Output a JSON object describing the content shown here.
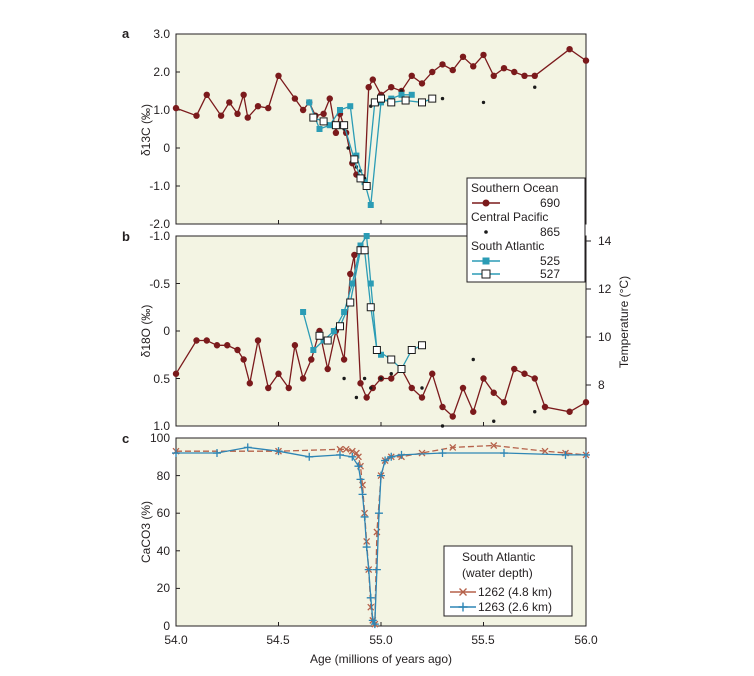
{
  "colors": {
    "panel_bg": "#f3f4e3",
    "red": "#7b1a1c",
    "teal": "#2b9cb5",
    "black": "#1a1a1a",
    "orange": "#b5614a",
    "blue": "#2e86b5"
  },
  "chart_data": [
    {
      "type": "line",
      "panel_label": "a",
      "ylabel": "δ13C (‰)",
      "ylim": [
        -2.0,
        3.0
      ],
      "xlim": [
        54.0,
        56.0
      ],
      "yticks": [
        "3.0",
        "2.0",
        "1.0",
        "0",
        "-1.0",
        "-2.0"
      ],
      "series": [
        {
          "name": "690",
          "group": "Southern Ocean",
          "marker": "circle",
          "x": [
            54.0,
            54.1,
            54.15,
            54.22,
            54.26,
            54.3,
            54.33,
            54.35,
            54.4,
            54.45,
            54.5,
            54.58,
            54.62,
            54.65,
            54.68,
            54.72,
            54.75,
            54.78,
            54.8,
            54.83,
            54.86,
            54.88,
            54.9,
            54.92,
            54.94,
            54.96,
            55.0,
            55.05,
            55.1,
            55.15,
            55.2,
            55.25,
            55.3,
            55.35,
            55.4,
            55.45,
            55.5,
            55.55,
            55.6,
            55.65,
            55.7,
            55.75,
            55.92,
            56.0
          ],
          "y": [
            1.05,
            0.85,
            1.4,
            0.85,
            1.2,
            0.9,
            1.4,
            0.8,
            1.1,
            1.05,
            1.9,
            1.3,
            1.0,
            1.2,
            0.85,
            0.9,
            1.3,
            0.4,
            0.9,
            0.4,
            -0.4,
            -0.7,
            -0.8,
            -0.9,
            1.6,
            1.8,
            1.4,
            1.6,
            1.5,
            1.9,
            1.7,
            2.0,
            2.2,
            2.05,
            2.4,
            2.15,
            2.45,
            1.9,
            2.1,
            2.0,
            1.9,
            1.9,
            2.6,
            2.3
          ]
        },
        {
          "name": "865",
          "group": "Central Pacific",
          "marker": "dot",
          "x": [
            54.82,
            54.84,
            54.86,
            54.88,
            54.9,
            54.92,
            54.95,
            55.0,
            55.1,
            55.3,
            55.5,
            55.75
          ],
          "y": [
            0.5,
            0.0,
            -0.3,
            -0.5,
            -0.6,
            -0.8,
            1.1,
            1.3,
            1.5,
            1.3,
            1.2,
            1.6
          ]
        },
        {
          "name": "525",
          "group": "South Atlantic",
          "marker": "square",
          "x": [
            54.65,
            54.7,
            54.75,
            54.8,
            54.85,
            54.88,
            54.92,
            54.95,
            55.0,
            55.05,
            55.1,
            55.15
          ],
          "y": [
            1.2,
            0.5,
            0.6,
            1.0,
            1.1,
            -0.2,
            -0.9,
            -1.5,
            1.2,
            1.3,
            1.4,
            1.4
          ]
        },
        {
          "name": "527",
          "group": "South Atlantic",
          "marker": "open-square",
          "x": [
            54.67,
            54.72,
            54.78,
            54.82,
            54.87,
            54.9,
            54.93,
            54.97,
            55.0,
            55.05,
            55.12,
            55.2,
            55.25
          ],
          "y": [
            0.8,
            0.7,
            0.6,
            0.6,
            -0.3,
            -0.8,
            -1.0,
            1.2,
            1.3,
            1.2,
            1.25,
            1.2,
            1.3
          ]
        }
      ]
    },
    {
      "type": "line",
      "panel_label": "b",
      "ylabel": "δ18O (‰)",
      "y2label": "Temperature (°C)",
      "ylim": [
        -1.0,
        1.0
      ],
      "y_inverted": true,
      "xlim": [
        54.0,
        56.0
      ],
      "yticks": [
        "-1.0",
        "-0.5",
        "0",
        "0.5",
        "1.0"
      ],
      "y2ticks": [
        "14",
        "12",
        "10",
        "8"
      ],
      "series": [
        {
          "name": "690",
          "marker": "circle",
          "x": [
            54.0,
            54.1,
            54.15,
            54.2,
            54.25,
            54.3,
            54.33,
            54.36,
            54.4,
            54.45,
            54.5,
            54.55,
            54.58,
            54.62,
            54.66,
            54.7,
            54.74,
            54.78,
            54.82,
            54.85,
            54.87,
            54.9,
            54.93,
            54.96,
            55.0,
            55.05,
            55.1,
            55.15,
            55.2,
            55.25,
            55.3,
            55.35,
            55.4,
            55.45,
            55.5,
            55.55,
            55.6,
            55.65,
            55.7,
            55.75,
            55.8,
            55.92,
            56.0
          ],
          "y": [
            0.45,
            0.1,
            0.1,
            0.15,
            0.15,
            0.2,
            0.3,
            0.55,
            0.1,
            0.6,
            0.45,
            0.6,
            0.15,
            0.5,
            0.3,
            0.0,
            0.4,
            0.0,
            0.3,
            -0.6,
            -0.8,
            0.55,
            0.7,
            0.6,
            0.5,
            0.5,
            0.4,
            0.6,
            0.7,
            0.45,
            0.8,
            0.9,
            0.6,
            0.85,
            0.5,
            0.65,
            0.75,
            0.4,
            0.45,
            0.5,
            0.8,
            0.85,
            0.75
          ]
        },
        {
          "name": "865",
          "marker": "dot",
          "x": [
            54.82,
            54.88,
            54.92,
            54.95,
            55.0,
            55.05,
            55.2,
            55.3,
            55.45,
            55.55,
            55.75
          ],
          "y": [
            0.5,
            0.7,
            0.5,
            0.6,
            0.5,
            0.45,
            0.6,
            1.0,
            0.3,
            0.95,
            0.85
          ]
        },
        {
          "name": "525",
          "marker": "square",
          "x": [
            54.62,
            54.67,
            54.72,
            54.77,
            54.82,
            54.86,
            54.9,
            54.93,
            54.95,
            54.98,
            55.0
          ],
          "y": [
            -0.2,
            0.2,
            0.1,
            0.0,
            -0.2,
            -0.5,
            -0.9,
            -1.0,
            -0.5,
            0.2,
            0.25
          ]
        },
        {
          "name": "527",
          "marker": "open-square",
          "x": [
            54.7,
            54.74,
            54.8,
            54.85,
            54.9,
            54.92,
            54.95,
            54.98,
            55.05,
            55.1,
            55.15,
            55.2
          ],
          "y": [
            0.05,
            0.1,
            -0.05,
            -0.3,
            -0.85,
            -0.85,
            -0.25,
            0.2,
            0.3,
            0.4,
            0.2,
            0.15
          ]
        }
      ]
    },
    {
      "type": "line",
      "panel_label": "c",
      "ylabel": "CaCO3 (%)",
      "xlabel": "Age (millions of years ago)",
      "ylim": [
        0,
        100
      ],
      "xlim": [
        54.0,
        56.0
      ],
      "yticks": [
        "100",
        "80",
        "60",
        "40",
        "20",
        "0"
      ],
      "xticks": [
        "54.0",
        "54.5",
        "55.0",
        "55.5",
        "56.0"
      ],
      "series": [
        {
          "name": "1262 (4.8 km)",
          "marker": "x",
          "x": [
            54.0,
            54.5,
            54.8,
            54.83,
            54.86,
            54.88,
            54.89,
            54.9,
            54.91,
            54.92,
            54.93,
            54.94,
            54.95,
            54.96,
            54.97,
            54.98,
            55.0,
            55.02,
            55.05,
            55.1,
            55.2,
            55.35,
            55.55,
            55.8,
            55.9,
            56.0
          ],
          "y": [
            93,
            93,
            94,
            94,
            93,
            92,
            90,
            85,
            75,
            60,
            45,
            30,
            10,
            3,
            1,
            50,
            80,
            88,
            90,
            90,
            92,
            95,
            96,
            93,
            92,
            91
          ]
        },
        {
          "name": "1263 (2.6 km)",
          "marker": "plus",
          "x": [
            54.0,
            54.2,
            54.35,
            54.5,
            54.65,
            54.8,
            54.86,
            54.89,
            54.9,
            54.91,
            54.92,
            54.93,
            54.94,
            54.95,
            54.96,
            54.97,
            54.98,
            54.99,
            55.0,
            55.02,
            55.05,
            55.1,
            55.3,
            55.6,
            55.9,
            56.0
          ],
          "y": [
            92,
            92,
            95,
            93,
            90,
            91,
            90,
            85,
            78,
            70,
            58,
            42,
            30,
            15,
            3,
            1,
            30,
            60,
            80,
            88,
            90,
            91,
            92,
            92,
            91,
            91
          ]
        }
      ]
    }
  ],
  "legend_bc": {
    "header1": "Southern Ocean",
    "s690": "690",
    "header2": "Central Pacific",
    "s865": "865",
    "header3": "South Atlantic",
    "s525": "525",
    "s527": "527"
  },
  "legend_c": {
    "header1": "South Atlantic",
    "header2": "(water depth)",
    "s1262": "1262 (4.8 km)",
    "s1263": "1263 (2.6 km)"
  }
}
